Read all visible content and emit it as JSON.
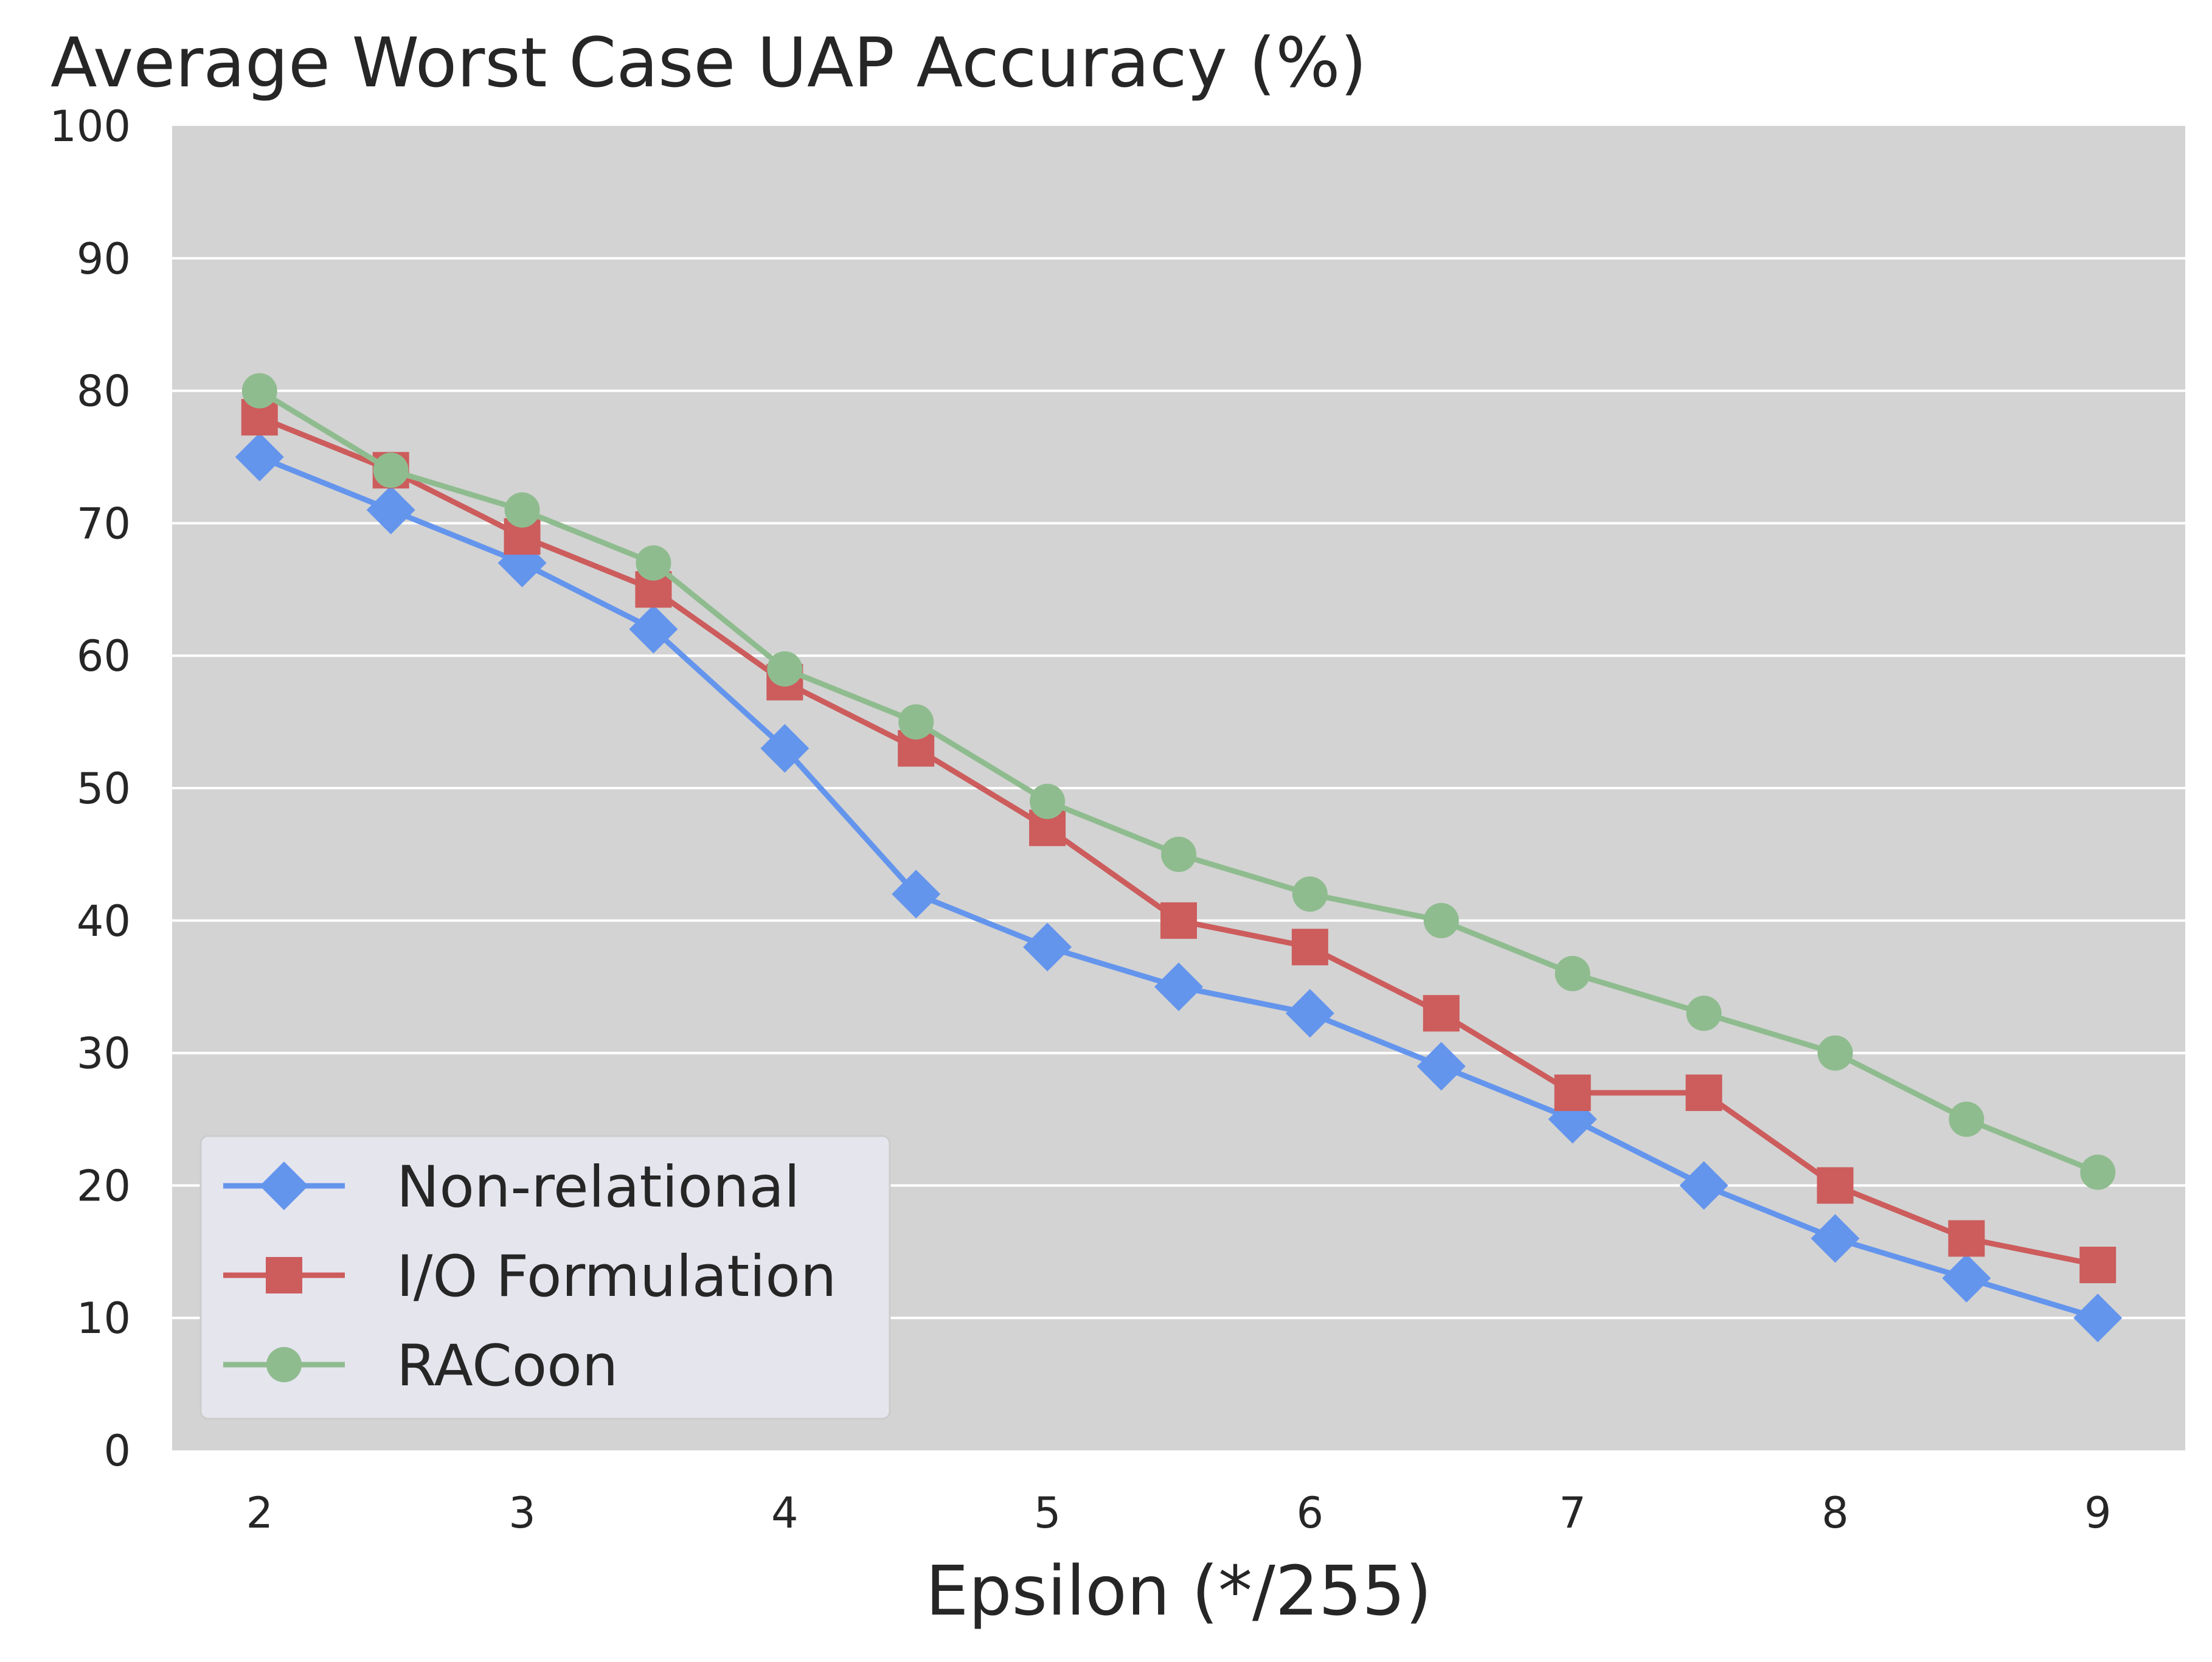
{
  "chart_data": {
    "type": "line",
    "title": "Average Worst Case UAP Accuracy (%)",
    "xlabel": "Epsilon (*/255)",
    "ylabel": "",
    "x": [
      2,
      2.5,
      3,
      3.5,
      4,
      4.5,
      5,
      5.5,
      6,
      6.5,
      7,
      7.5,
      8,
      8.5,
      9
    ],
    "xticks": [
      "2",
      "3",
      "4",
      "5",
      "6",
      "7",
      "8",
      "9"
    ],
    "yticks": [
      "0",
      "10",
      "20",
      "30",
      "40",
      "50",
      "60",
      "70",
      "80",
      "90",
      "100"
    ],
    "ylim": [
      0,
      100
    ],
    "grid": true,
    "legend_position": "lower-left",
    "series": [
      {
        "name": "Non-relational",
        "color": "#6495ED",
        "marker": "diamond",
        "values": [
          75,
          71,
          67,
          62,
          53,
          42,
          38,
          35,
          33,
          29,
          25,
          20,
          16,
          13,
          10
        ]
      },
      {
        "name": "I/O Formulation",
        "color": "#CD5C5C",
        "marker": "square",
        "values": [
          78,
          74,
          69,
          65,
          58,
          53,
          47,
          40,
          38,
          33,
          27,
          27,
          20,
          16,
          14
        ]
      },
      {
        "name": "RACoon",
        "color": "#8FBC8F",
        "marker": "circle",
        "values": [
          80,
          74,
          71,
          67,
          59,
          55,
          49,
          45,
          42,
          40,
          36,
          33,
          30,
          25,
          21
        ]
      }
    ]
  }
}
